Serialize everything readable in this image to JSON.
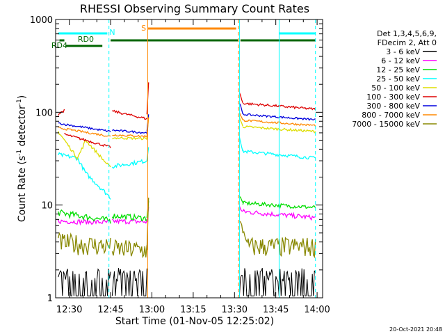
{
  "chart_data": {
    "type": "line",
    "title": "RHESSI Observing Summary Count Rates",
    "xlabel": "Start Time (01-Nov-05 12:25:02)",
    "ylabel_main": "Count Rate (s",
    "ylabel_sup": "-1",
    "ylabel_mid": " detector",
    "ylabel_end": ")",
    "footer": "20-Oct-2021 20:48",
    "yscale": "log",
    "ylim": [
      1,
      1000
    ],
    "xlim": [
      "12:25",
      "14:02"
    ],
    "x_ticks": [
      "12:30",
      "12:45",
      "13:00",
      "13:15",
      "13:30",
      "13:45",
      "14:00"
    ],
    "y_ticks": [
      "1",
      "10",
      "100",
      "1000"
    ],
    "legend_header": [
      "Det 1,3,4,5,6,9,",
      "FDecim 2, Att 0"
    ],
    "series": [
      {
        "name": "3 - 6 keV",
        "color": "#000000"
      },
      {
        "name": "6 - 12 keV",
        "color": "#ff00ff"
      },
      {
        "name": "12 - 25 keV",
        "color": "#00dd00"
      },
      {
        "name": "25 - 50 keV",
        "color": "#00ffff"
      },
      {
        "name": "50 - 100 keV",
        "color": "#dddd00"
      },
      {
        "name": "100 - 300 keV",
        "color": "#dd0000"
      },
      {
        "name": "300 - 800 keV",
        "color": "#0000dd"
      },
      {
        "name": "800 - 7000 keV",
        "color": "#ff8800"
      },
      {
        "name": "7000 - 15000 keV",
        "color": "#888800"
      }
    ],
    "flags": [
      {
        "label": "RD0",
        "color": "#006600"
      },
      {
        "label": "RD4",
        "color": "#006600"
      },
      {
        "label": "N",
        "color": "#00ffff"
      },
      {
        "label": "S",
        "color": "#ff8800"
      }
    ]
  }
}
